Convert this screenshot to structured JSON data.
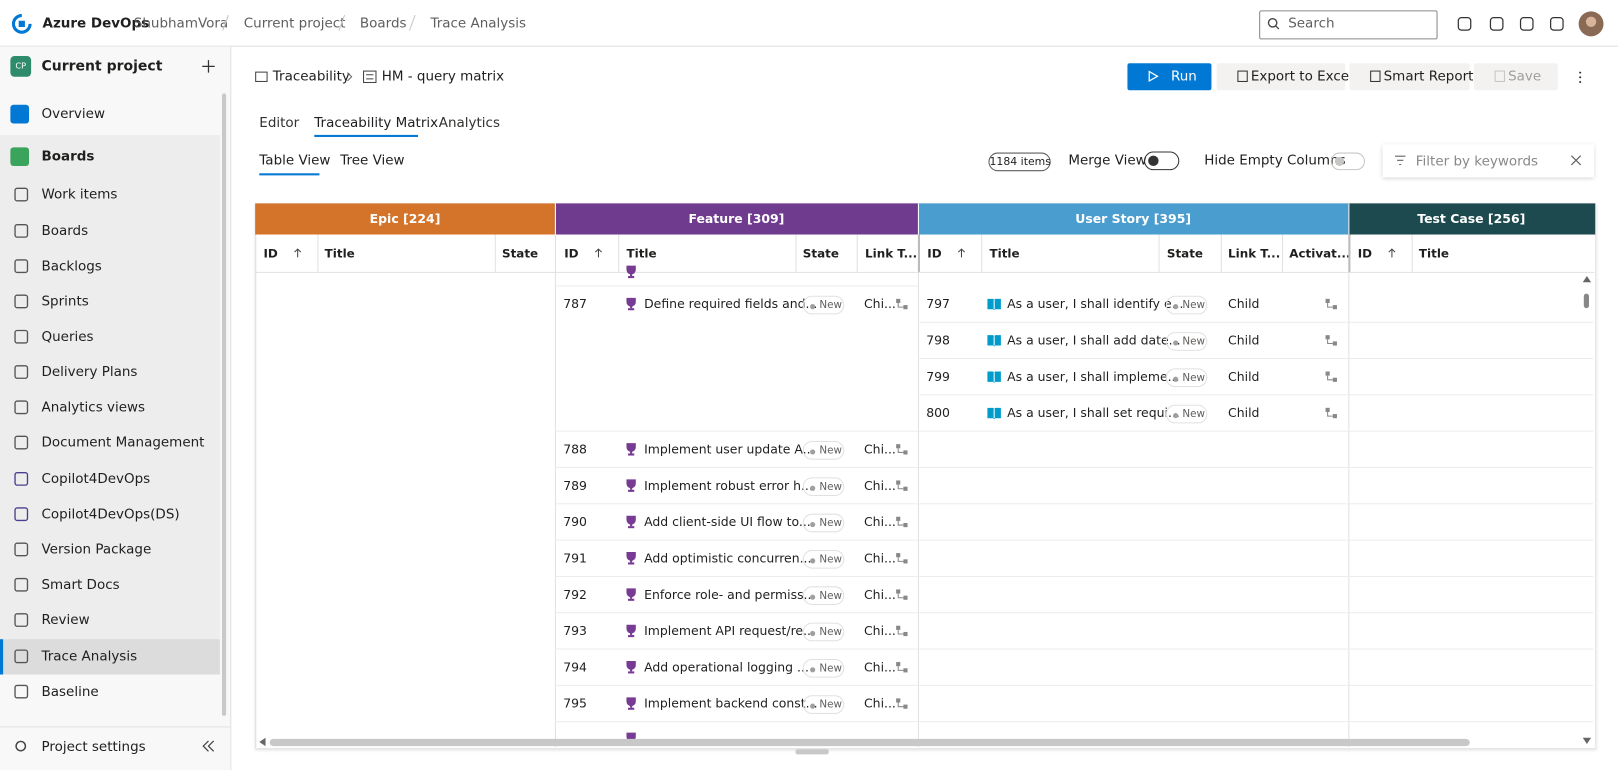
{
  "topbar": {
    "brand": "Azure DevOps",
    "org": "ShubhamVora",
    "breadcrumbs": [
      "Current project",
      "Boards",
      "Trace Analysis"
    ],
    "search": "Search"
  },
  "sidebar": {
    "badge": "CP",
    "project": "Current project",
    "items": [
      "Overview",
      "Boards",
      "Work items",
      "Boards",
      "Backlogs",
      "Sprints",
      "Queries",
      "Delivery Plans",
      "Analytics views",
      "Document Management",
      "Copilot4DevOps",
      "Copilot4DevOps(DS)",
      "Version Package",
      "Smart Docs",
      "Review",
      "Trace Analysis",
      "Baseline"
    ],
    "footer": "Project settings"
  },
  "header": {
    "path": [
      "Traceability",
      "HM - query matrix"
    ],
    "buttons": [
      "Run",
      "Export to Excel",
      "Smart Report",
      "Save"
    ]
  },
  "tabs": [
    "Editor",
    "Traceability Matrix",
    "Analytics"
  ],
  "views": [
    "Table View",
    "Tree View"
  ],
  "toolbar": {
    "count": "1184 items",
    "merge": "Merge View",
    "hide_empty": "Hide Empty Columns",
    "filter": "Filter by keywords"
  },
  "groups": [
    {
      "name": "Epic [224]",
      "columns": [
        "ID",
        "Title",
        "State"
      ]
    },
    {
      "name": "Feature [309]",
      "columns": [
        "ID",
        "Title",
        "State",
        "Link T..."
      ]
    },
    {
      "name": "User Story [395]",
      "columns": [
        "ID",
        "Title",
        "State",
        "Link T...",
        "Activat..."
      ]
    },
    {
      "name": "Test Case [256]",
      "columns": [
        "ID",
        "Title"
      ]
    }
  ],
  "feature_rows": [
    {
      "id": "787",
      "title": "Define required fields and...",
      "state": "New",
      "link": "Chi..."
    },
    {
      "id": "788",
      "title": "Implement user update A...",
      "state": "New",
      "link": "Chi..."
    },
    {
      "id": "789",
      "title": "Implement robust error h...",
      "state": "New",
      "link": "Chi..."
    },
    {
      "id": "790",
      "title": "Add client-side UI flow to...",
      "state": "New",
      "link": "Chi..."
    },
    {
      "id": "791",
      "title": "Add optimistic concurren...",
      "state": "New",
      "link": "Chi..."
    },
    {
      "id": "792",
      "title": "Enforce role- and permiss...",
      "state": "New",
      "link": "Chi..."
    },
    {
      "id": "793",
      "title": "Implement API request/re...",
      "state": "New",
      "link": "Chi..."
    },
    {
      "id": "794",
      "title": "Add operational logging ...",
      "state": "New",
      "link": "Chi..."
    },
    {
      "id": "795",
      "title": "Implement backend const...",
      "state": "New",
      "link": "Chi..."
    }
  ],
  "story_rows": [
    {
      "id": "797",
      "title": "As a user, I shall identify e...",
      "state": "New",
      "link": "Child"
    },
    {
      "id": "798",
      "title": "As a user, I shall add date...",
      "state": "New",
      "link": "Child"
    },
    {
      "id": "799",
      "title": "As a user, I shall impleme...",
      "state": "New",
      "link": "Child"
    },
    {
      "id": "800",
      "title": "As a user, I shall set requi...",
      "state": "New",
      "link": "Child"
    }
  ]
}
